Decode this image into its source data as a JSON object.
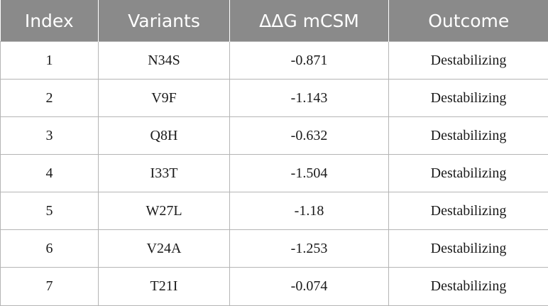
{
  "table": {
    "headers": [
      "Index",
      "Variants",
      "ΔΔG mCSM",
      "Outcome"
    ],
    "rows": [
      [
        "1",
        "N34S",
        "-0.871",
        "Destabilizing"
      ],
      [
        "2",
        "V9F",
        "-1.143",
        "Destabilizing"
      ],
      [
        "3",
        "Q8H",
        "-0.632",
        "Destabilizing"
      ],
      [
        "4",
        "I33T",
        "-1.504",
        "Destabilizing"
      ],
      [
        "5",
        "W27L",
        "-1.18",
        "Destabilizing"
      ],
      [
        "6",
        "V24A",
        "-1.253",
        "Destabilizing"
      ],
      [
        "7",
        "T21I",
        "-0.074",
        "Destabilizing"
      ]
    ]
  }
}
